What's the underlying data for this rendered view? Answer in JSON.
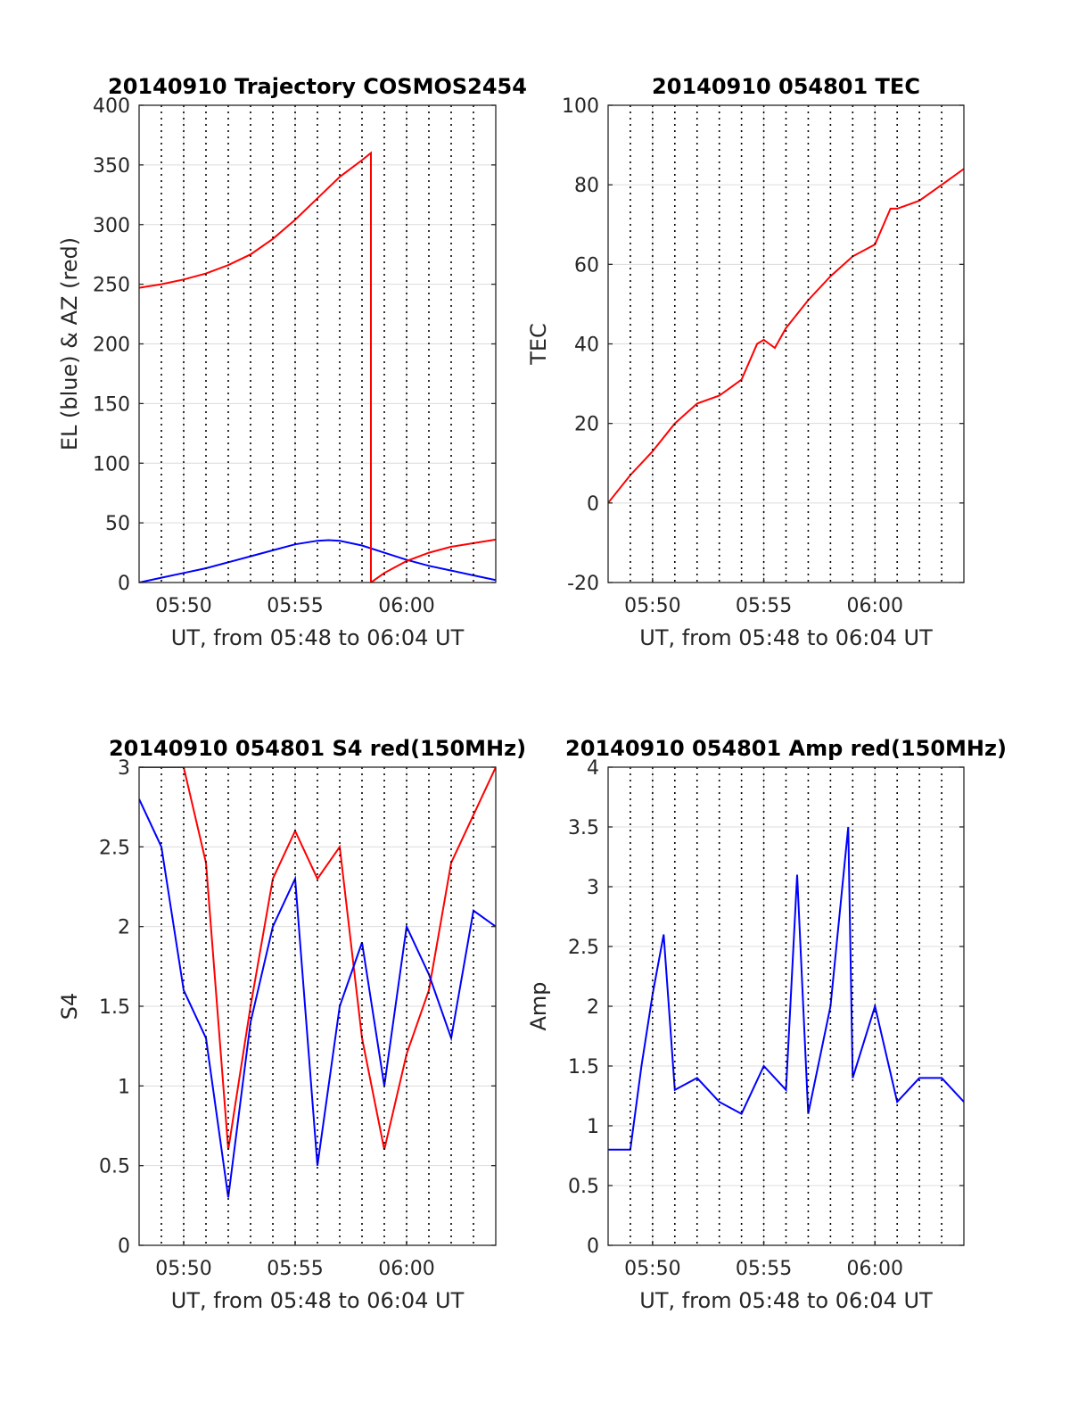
{
  "colors": {
    "blue": "#0000ff",
    "red": "#ff0000"
  },
  "chart_data": [
    {
      "id": "trajectory",
      "type": "line",
      "title": "20140910 Trajectory COSMOS2454",
      "xlabel": "UT, from 05:48 to 06:04 UT",
      "ylabel": "EL (blue) & AZ (red)",
      "xlim": [
        "05:48",
        "06:04"
      ],
      "ylim": [
        0,
        400
      ],
      "yticks": [
        "0",
        "50",
        "100",
        "150",
        "200",
        "250",
        "300",
        "350",
        "400"
      ],
      "xticks": [
        "05:50",
        "05:55",
        "06:00"
      ],
      "grid": true,
      "dotted_vlines": [
        "05:49",
        "05:50",
        "05:51",
        "05:52",
        "05:53",
        "05:54",
        "05:55",
        "05:56",
        "05:57",
        "05:58",
        "05:59",
        "06:00",
        "06:01",
        "06:02",
        "06:03"
      ],
      "series": [
        {
          "name": "EL",
          "color": "#0000ff",
          "x": [
            "05:48",
            "05:49",
            "05:50",
            "05:51",
            "05:52",
            "05:53",
            "05:54",
            "05:55",
            "05:56",
            "05:56.5",
            "05:57",
            "05:58",
            "05:59",
            "06:00",
            "06:01",
            "06:02",
            "06:03",
            "06:04"
          ],
          "y": [
            0,
            4,
            8,
            12,
            17,
            22,
            27,
            32,
            35,
            35.5,
            35,
            31,
            25,
            19,
            14,
            10,
            6,
            2
          ]
        },
        {
          "name": "AZ",
          "color": "#ff0000",
          "x": [
            "05:48",
            "05:49",
            "05:50",
            "05:51",
            "05:52",
            "05:53",
            "05:54",
            "05:55",
            "05:56",
            "05:57",
            "05:58",
            "05:58.4",
            "05:58.4",
            "05:59",
            "06:00",
            "06:01",
            "06:02",
            "06:03",
            "06:04"
          ],
          "y": [
            247,
            250,
            254,
            259,
            266,
            275,
            288,
            304,
            322,
            340,
            354,
            360,
            0,
            8,
            18,
            25,
            30,
            33,
            36
          ]
        }
      ]
    },
    {
      "id": "tec",
      "type": "line",
      "title": "20140910 054801 TEC",
      "xlabel": "UT, from 05:48 to 06:04 UT",
      "ylabel": "TEC",
      "xlim": [
        "05:48",
        "06:04"
      ],
      "ylim": [
        -20,
        100
      ],
      "yticks": [
        "-20",
        "0",
        "20",
        "40",
        "60",
        "80",
        "100"
      ],
      "xticks": [
        "05:50",
        "05:55",
        "06:00"
      ],
      "grid": true,
      "dotted_vlines": [
        "05:49",
        "05:50",
        "05:51",
        "05:52",
        "05:53",
        "05:54",
        "05:55",
        "05:56",
        "05:57",
        "05:58",
        "05:59",
        "06:00",
        "06:01",
        "06:02",
        "06:03"
      ],
      "series": [
        {
          "name": "TEC",
          "color": "#ff0000",
          "x": [
            "05:48",
            "05:49",
            "05:50",
            "05:51",
            "05:52",
            "05:53",
            "05:54",
            "05:54.7",
            "05:55",
            "05:55.5",
            "05:56",
            "05:57",
            "05:58",
            "05:59",
            "06:00",
            "06:00.7",
            "06:01",
            "06:02",
            "06:03",
            "06:04"
          ],
          "y": [
            0,
            7,
            13,
            20,
            25,
            27,
            31,
            40,
            41,
            39,
            44,
            51,
            57,
            62,
            65,
            74,
            74,
            76,
            80,
            84
          ]
        }
      ]
    },
    {
      "id": "s4",
      "type": "line",
      "title": "20140910 054801 S4 red(150MHz)",
      "xlabel": "UT, from 05:48 to 06:04 UT",
      "ylabel": "S4",
      "xlim": [
        "05:48",
        "06:04"
      ],
      "ylim": [
        0,
        3
      ],
      "yticks": [
        "0",
        "0.5",
        "1",
        "1.5",
        "2",
        "2.5",
        "3"
      ],
      "xticks": [
        "05:50",
        "05:55",
        "06:00"
      ],
      "grid": true,
      "dotted_vlines": [
        "05:49",
        "05:50",
        "05:51",
        "05:52",
        "05:53",
        "05:54",
        "05:55",
        "05:56",
        "05:57",
        "05:58",
        "05:59",
        "06:00",
        "06:01",
        "06:02",
        "06:03"
      ],
      "series": [
        {
          "name": "red",
          "color": "#ff0000",
          "x": [
            "05:48",
            "05:49",
            "05:50",
            "05:51",
            "05:52",
            "05:53",
            "05:54",
            "05:55",
            "05:56",
            "05:57",
            "05:58",
            "05:59",
            "06:00",
            "06:01",
            "06:02",
            "06:03",
            "06:04"
          ],
          "y": [
            3,
            3,
            3,
            2.4,
            0.6,
            1.5,
            2.3,
            2.6,
            2.3,
            2.5,
            1.3,
            0.6,
            1.2,
            1.6,
            2.4,
            2.7,
            3
          ]
        },
        {
          "name": "blue",
          "color": "#0000ff",
          "x": [
            "05:48",
            "05:49",
            "05:50",
            "05:51",
            "05:52",
            "05:53",
            "05:54",
            "05:55",
            "05:56",
            "05:57",
            "05:58",
            "05:59",
            "06:00",
            "06:01",
            "06:02",
            "06:03",
            "06:04"
          ],
          "y": [
            2.8,
            2.5,
            1.6,
            1.3,
            0.3,
            1.4,
            2.0,
            2.3,
            0.5,
            1.5,
            1.9,
            1.0,
            2.0,
            1.7,
            1.3,
            2.1,
            2.0
          ]
        }
      ]
    },
    {
      "id": "amp",
      "type": "line",
      "title": "20140910 054801 Amp red(150MHz)",
      "xlabel": "UT, from 05:48 to 06:04 UT",
      "ylabel": "Amp",
      "xlim": [
        "05:48",
        "06:04"
      ],
      "ylim": [
        0,
        4
      ],
      "yticks": [
        "0",
        "0.5",
        "1",
        "1.5",
        "2",
        "2.5",
        "3",
        "3.5",
        "4"
      ],
      "xticks": [
        "05:50",
        "05:55",
        "06:00"
      ],
      "grid": true,
      "dotted_vlines": [
        "05:49",
        "05:50",
        "05:51",
        "05:52",
        "05:53",
        "05:54",
        "05:55",
        "05:56",
        "05:57",
        "05:58",
        "05:59",
        "06:00",
        "06:01",
        "06:02",
        "06:03"
      ],
      "series": [
        {
          "name": "Amp",
          "color": "#0000ff",
          "x": [
            "05:48",
            "05:49",
            "05:49.5",
            "05:50",
            "05:50.5",
            "05:51",
            "05:52",
            "05:53",
            "05:54",
            "05:55",
            "05:56",
            "05:56.5",
            "05:57",
            "05:58",
            "05:58.8",
            "05:59",
            "06:00",
            "06:01",
            "06:02",
            "06:03",
            "06:04"
          ],
          "y": [
            0.8,
            0.8,
            1.5,
            2.1,
            2.6,
            1.3,
            1.4,
            1.2,
            1.1,
            1.5,
            1.3,
            3.1,
            1.1,
            2.0,
            3.5,
            1.4,
            2.0,
            1.2,
            1.4,
            1.4,
            1.2
          ]
        }
      ]
    }
  ]
}
